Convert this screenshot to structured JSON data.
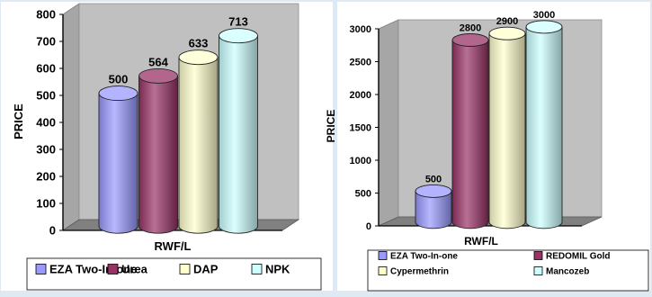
{
  "chart_data": [
    {
      "type": "bar",
      "ylabel": "PRICE",
      "xlabel": "RWF/L",
      "ylim": [
        0,
        800
      ],
      "yticks": [
        0,
        100,
        200,
        300,
        400,
        500,
        600,
        700,
        800
      ],
      "series": [
        {
          "name": "EZA Two-In-one",
          "value": 500,
          "color": "#9999ff"
        },
        {
          "name": "Urea",
          "value": 564,
          "color": "#993366"
        },
        {
          "name": "DAP",
          "value": 633,
          "color": "#ffffcc"
        },
        {
          "name": "NPK",
          "value": 713,
          "color": "#ccffff"
        }
      ],
      "legend_placement": "bottom",
      "grid": false
    },
    {
      "type": "bar",
      "ylabel": "PRICE",
      "xlabel": "RWF/L",
      "ylim": [
        0,
        3000
      ],
      "yticks": [
        0,
        500,
        1000,
        1500,
        2000,
        2500,
        3000
      ],
      "series": [
        {
          "name": "EZA Two-In-one",
          "value": 500,
          "color": "#9999ff"
        },
        {
          "name": "REDOMIL Gold",
          "value": 2800,
          "color": "#993366"
        },
        {
          "name": "Cypermethrin",
          "value": 2900,
          "color": "#ffffcc"
        },
        {
          "name": "Mancozeb",
          "value": 3000,
          "color": "#ccffff"
        }
      ],
      "legend_placement": "bottom",
      "grid": false
    }
  ]
}
